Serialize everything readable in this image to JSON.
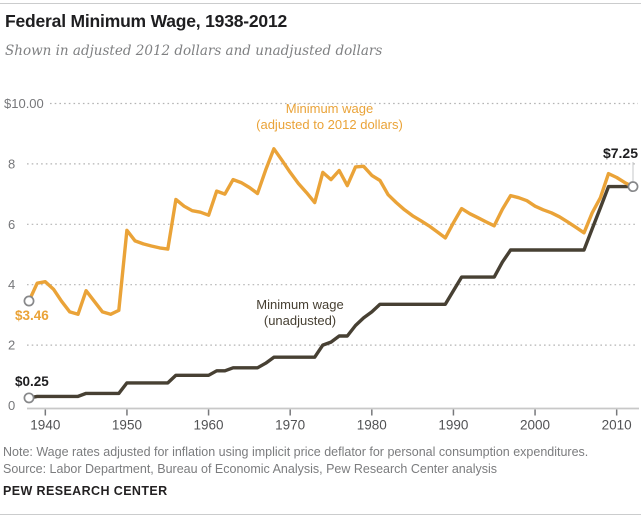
{
  "header": {
    "title": "Federal Minimum Wage, 1938-2012",
    "subtitle": "Shown in adjusted 2012 dollars and unadjusted dollars"
  },
  "footer": {
    "note": "Note: Wage rates adjusted for inflation using implicit price deflator for personal consumption expenditures.",
    "source": "Source: Labor Department, Bureau of Economic Analysis, Pew Research Center analysis",
    "brand": "PEW RESEARCH CENTER"
  },
  "colors": {
    "adjusted": "#eaa338",
    "unadjusted": "#474033",
    "grid": "#b4b4b4",
    "axis": "#c8c8c8",
    "tick": "#77787b",
    "x_tick_label": "#515254",
    "y_tick_label": "#76777a",
    "marker_stroke": "#87888a",
    "leader": "#c6c7c8"
  },
  "chart_data": {
    "type": "line",
    "title": "Federal Minimum Wage, 1938-2012",
    "xlabel": "",
    "ylabel": "",
    "xlim": [
      1938,
      2012
    ],
    "ylim": [
      0,
      10
    ],
    "grid": "horizontal-dotted",
    "legend_position": "inline-labels",
    "x_ticks": [
      1940,
      1950,
      1960,
      1970,
      1980,
      1990,
      2000,
      2010
    ],
    "y_ticks": {
      "values": [
        10,
        8,
        6,
        4,
        2,
        0
      ],
      "labels": [
        "$10.00",
        "8",
        "6",
        "4",
        "2",
        "0"
      ]
    },
    "years": [
      1938,
      1939,
      1940,
      1941,
      1942,
      1943,
      1944,
      1945,
      1946,
      1947,
      1948,
      1949,
      1950,
      1951,
      1952,
      1953,
      1954,
      1955,
      1956,
      1957,
      1958,
      1959,
      1960,
      1961,
      1962,
      1963,
      1964,
      1965,
      1966,
      1967,
      1968,
      1969,
      1970,
      1971,
      1972,
      1973,
      1974,
      1975,
      1976,
      1977,
      1978,
      1979,
      1980,
      1981,
      1982,
      1983,
      1984,
      1985,
      1986,
      1987,
      1988,
      1989,
      1990,
      1991,
      1992,
      1993,
      1994,
      1995,
      1996,
      1997,
      1998,
      1999,
      2000,
      2001,
      2002,
      2003,
      2004,
      2005,
      2006,
      2007,
      2008,
      2009,
      2010,
      2011,
      2012
    ],
    "series": [
      {
        "id": "adjusted",
        "name": "Minimum wage (adjusted to 2012 dollars)",
        "label_lines": {
          "line1": "Minimum wage",
          "line2": "(adjusted to 2012 dollars)"
        },
        "color": "#eaa338",
        "values": [
          3.46,
          4.05,
          4.1,
          3.85,
          3.45,
          3.1,
          3.02,
          3.8,
          3.45,
          3.1,
          3.02,
          3.15,
          5.8,
          5.45,
          5.35,
          5.28,
          5.22,
          5.18,
          6.82,
          6.6,
          6.45,
          6.4,
          6.3,
          7.1,
          7.0,
          7.48,
          7.38,
          7.22,
          7.02,
          7.8,
          8.5,
          8.12,
          7.72,
          7.35,
          7.05,
          6.72,
          7.72,
          7.48,
          7.78,
          7.28,
          7.9,
          7.92,
          7.62,
          7.45,
          6.98,
          6.72,
          6.48,
          6.28,
          6.12,
          5.95,
          5.75,
          5.55,
          6.05,
          6.52,
          6.35,
          6.22,
          6.08,
          5.95,
          6.5,
          6.95,
          6.88,
          6.78,
          6.6,
          6.48,
          6.38,
          6.25,
          6.08,
          5.9,
          5.72,
          6.38,
          6.88,
          7.68,
          7.55,
          7.38,
          7.25
        ]
      },
      {
        "id": "unadjusted",
        "name": "Minimum wage (unadjusted)",
        "label_lines": {
          "line1": "Minimum wage",
          "line2": "(unadjusted)"
        },
        "color": "#474033",
        "values": [
          0.25,
          0.3,
          0.3,
          0.3,
          0.3,
          0.3,
          0.3,
          0.4,
          0.4,
          0.4,
          0.4,
          0.4,
          0.75,
          0.75,
          0.75,
          0.75,
          0.75,
          0.75,
          1.0,
          1.0,
          1.0,
          1.0,
          1.0,
          1.15,
          1.15,
          1.25,
          1.25,
          1.25,
          1.25,
          1.4,
          1.6,
          1.6,
          1.6,
          1.6,
          1.6,
          1.6,
          2.0,
          2.1,
          2.3,
          2.3,
          2.65,
          2.9,
          3.1,
          3.35,
          3.35,
          3.35,
          3.35,
          3.35,
          3.35,
          3.35,
          3.35,
          3.35,
          3.8,
          4.25,
          4.25,
          4.25,
          4.25,
          4.25,
          4.75,
          5.15,
          5.15,
          5.15,
          5.15,
          5.15,
          5.15,
          5.15,
          5.15,
          5.15,
          5.15,
          5.85,
          6.55,
          7.25,
          7.25,
          7.25,
          7.25
        ]
      }
    ],
    "point_labels": {
      "adjusted_start": {
        "year": 1938,
        "value": 3.46,
        "label": "$3.46"
      },
      "unadjusted_start": {
        "year": 1938,
        "value": 0.25,
        "label": "$0.25"
      },
      "end": {
        "year": 2012,
        "value": 7.25,
        "label": "$7.25"
      }
    }
  }
}
